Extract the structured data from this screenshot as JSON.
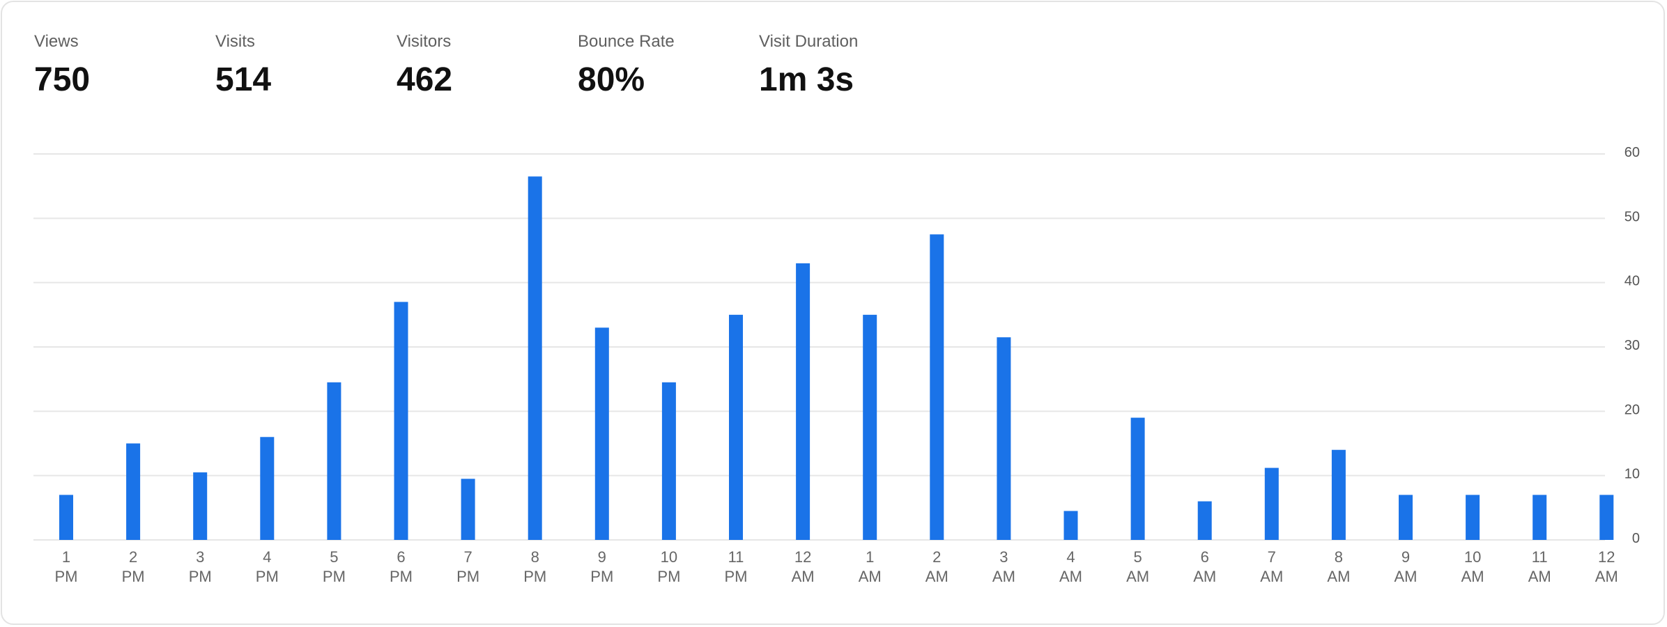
{
  "metrics": [
    {
      "label": "Views",
      "value": "750"
    },
    {
      "label": "Visits",
      "value": "514"
    },
    {
      "label": "Visitors",
      "value": "462"
    },
    {
      "label": "Bounce Rate",
      "value": "80%"
    },
    {
      "label": "Visit Duration",
      "value": "1m 3s"
    }
  ],
  "colors": {
    "bar": "#1a73e8",
    "grid": "#e6e6e6",
    "label": "#666666"
  },
  "chart_data": {
    "type": "bar",
    "categories": [
      [
        "1",
        "PM"
      ],
      [
        "2",
        "PM"
      ],
      [
        "3",
        "PM"
      ],
      [
        "4",
        "PM"
      ],
      [
        "5",
        "PM"
      ],
      [
        "6",
        "PM"
      ],
      [
        "7",
        "PM"
      ],
      [
        "8",
        "PM"
      ],
      [
        "9",
        "PM"
      ],
      [
        "10",
        "PM"
      ],
      [
        "11",
        "PM"
      ],
      [
        "12",
        "AM"
      ],
      [
        "1",
        "AM"
      ],
      [
        "2",
        "AM"
      ],
      [
        "3",
        "AM"
      ],
      [
        "4",
        "AM"
      ],
      [
        "5",
        "AM"
      ],
      [
        "6",
        "AM"
      ],
      [
        "7",
        "AM"
      ],
      [
        "8",
        "AM"
      ],
      [
        "9",
        "AM"
      ],
      [
        "10",
        "AM"
      ],
      [
        "11",
        "AM"
      ],
      [
        "12",
        "AM"
      ]
    ],
    "values": [
      7,
      15,
      10.5,
      16,
      24.5,
      37,
      9.5,
      56.5,
      33,
      24.5,
      35,
      43,
      35,
      47.5,
      31.5,
      4.5,
      19,
      6,
      11.2,
      14,
      7,
      7,
      7,
      7
    ],
    "ylim": [
      0,
      60
    ],
    "yticks": [
      0,
      10,
      20,
      30,
      40,
      50,
      60
    ],
    "y_axis_side": "right",
    "grid": true
  }
}
